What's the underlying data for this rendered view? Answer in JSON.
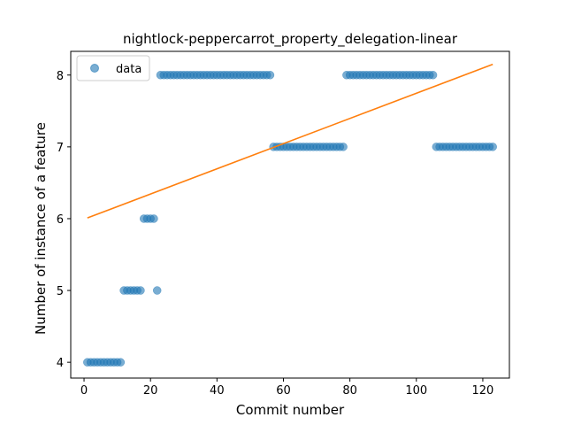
{
  "chart_data": {
    "type": "scatter",
    "title": "nightlock-peppercarrot_property_delegation-linear",
    "xlabel": "Commit number",
    "ylabel": "Number of instance of a feature",
    "xlim": [
      -4,
      128
    ],
    "ylim": [
      3.78,
      8.33
    ],
    "xticks": [
      0,
      20,
      40,
      60,
      80,
      100,
      120
    ],
    "yticks": [
      4,
      5,
      6,
      7,
      8
    ],
    "grid": false,
    "legend": {
      "position": "top-left",
      "entries": [
        "data"
      ]
    },
    "colors": {
      "data": "#1f77b4",
      "fit": "#ff7f0e"
    },
    "series": [
      {
        "name": "data",
        "kind": "scatter",
        "points": [
          [
            1,
            4
          ],
          [
            2,
            4
          ],
          [
            3,
            4
          ],
          [
            4,
            4
          ],
          [
            5,
            4
          ],
          [
            6,
            4
          ],
          [
            7,
            4
          ],
          [
            8,
            4
          ],
          [
            9,
            4
          ],
          [
            10,
            4
          ],
          [
            11,
            4
          ],
          [
            12,
            5
          ],
          [
            13,
            5
          ],
          [
            14,
            5
          ],
          [
            15,
            5
          ],
          [
            16,
            5
          ],
          [
            17,
            5
          ],
          [
            18,
            6
          ],
          [
            19,
            6
          ],
          [
            20,
            6
          ],
          [
            21,
            6
          ],
          [
            22,
            5
          ],
          [
            23,
            8
          ],
          [
            24,
            8
          ],
          [
            25,
            8
          ],
          [
            26,
            8
          ],
          [
            27,
            8
          ],
          [
            28,
            8
          ],
          [
            29,
            8
          ],
          [
            30,
            8
          ],
          [
            31,
            8
          ],
          [
            32,
            8
          ],
          [
            33,
            8
          ],
          [
            34,
            8
          ],
          [
            35,
            8
          ],
          [
            36,
            8
          ],
          [
            37,
            8
          ],
          [
            38,
            8
          ],
          [
            39,
            8
          ],
          [
            40,
            8
          ],
          [
            41,
            8
          ],
          [
            42,
            8
          ],
          [
            43,
            8
          ],
          [
            44,
            8
          ],
          [
            45,
            8
          ],
          [
            46,
            8
          ],
          [
            47,
            8
          ],
          [
            48,
            8
          ],
          [
            49,
            8
          ],
          [
            50,
            8
          ],
          [
            51,
            8
          ],
          [
            52,
            8
          ],
          [
            53,
            8
          ],
          [
            54,
            8
          ],
          [
            55,
            8
          ],
          [
            56,
            8
          ],
          [
            57,
            7
          ],
          [
            58,
            7
          ],
          [
            59,
            7
          ],
          [
            60,
            7
          ],
          [
            61,
            7
          ],
          [
            62,
            7
          ],
          [
            63,
            7
          ],
          [
            64,
            7
          ],
          [
            65,
            7
          ],
          [
            66,
            7
          ],
          [
            67,
            7
          ],
          [
            68,
            7
          ],
          [
            69,
            7
          ],
          [
            70,
            7
          ],
          [
            71,
            7
          ],
          [
            72,
            7
          ],
          [
            73,
            7
          ],
          [
            74,
            7
          ],
          [
            75,
            7
          ],
          [
            76,
            7
          ],
          [
            77,
            7
          ],
          [
            78,
            7
          ],
          [
            79,
            8
          ],
          [
            80,
            8
          ],
          [
            81,
            8
          ],
          [
            82,
            8
          ],
          [
            83,
            8
          ],
          [
            84,
            8
          ],
          [
            85,
            8
          ],
          [
            86,
            8
          ],
          [
            87,
            8
          ],
          [
            88,
            8
          ],
          [
            89,
            8
          ],
          [
            90,
            8
          ],
          [
            91,
            8
          ],
          [
            92,
            8
          ],
          [
            93,
            8
          ],
          [
            94,
            8
          ],
          [
            95,
            8
          ],
          [
            96,
            8
          ],
          [
            97,
            8
          ],
          [
            98,
            8
          ],
          [
            99,
            8
          ],
          [
            100,
            8
          ],
          [
            101,
            8
          ],
          [
            102,
            8
          ],
          [
            103,
            8
          ],
          [
            104,
            8
          ],
          [
            105,
            8
          ],
          [
            106,
            7
          ],
          [
            107,
            7
          ],
          [
            108,
            7
          ],
          [
            109,
            7
          ],
          [
            110,
            7
          ],
          [
            111,
            7
          ],
          [
            112,
            7
          ],
          [
            113,
            7
          ],
          [
            114,
            7
          ],
          [
            115,
            7
          ],
          [
            116,
            7
          ],
          [
            117,
            7
          ],
          [
            118,
            7
          ],
          [
            119,
            7
          ],
          [
            120,
            7
          ],
          [
            121,
            7
          ],
          [
            122,
            7
          ],
          [
            123,
            7
          ]
        ]
      },
      {
        "kind": "line",
        "x": [
          1,
          123
        ],
        "y": [
          6.01,
          8.15
        ]
      }
    ]
  }
}
